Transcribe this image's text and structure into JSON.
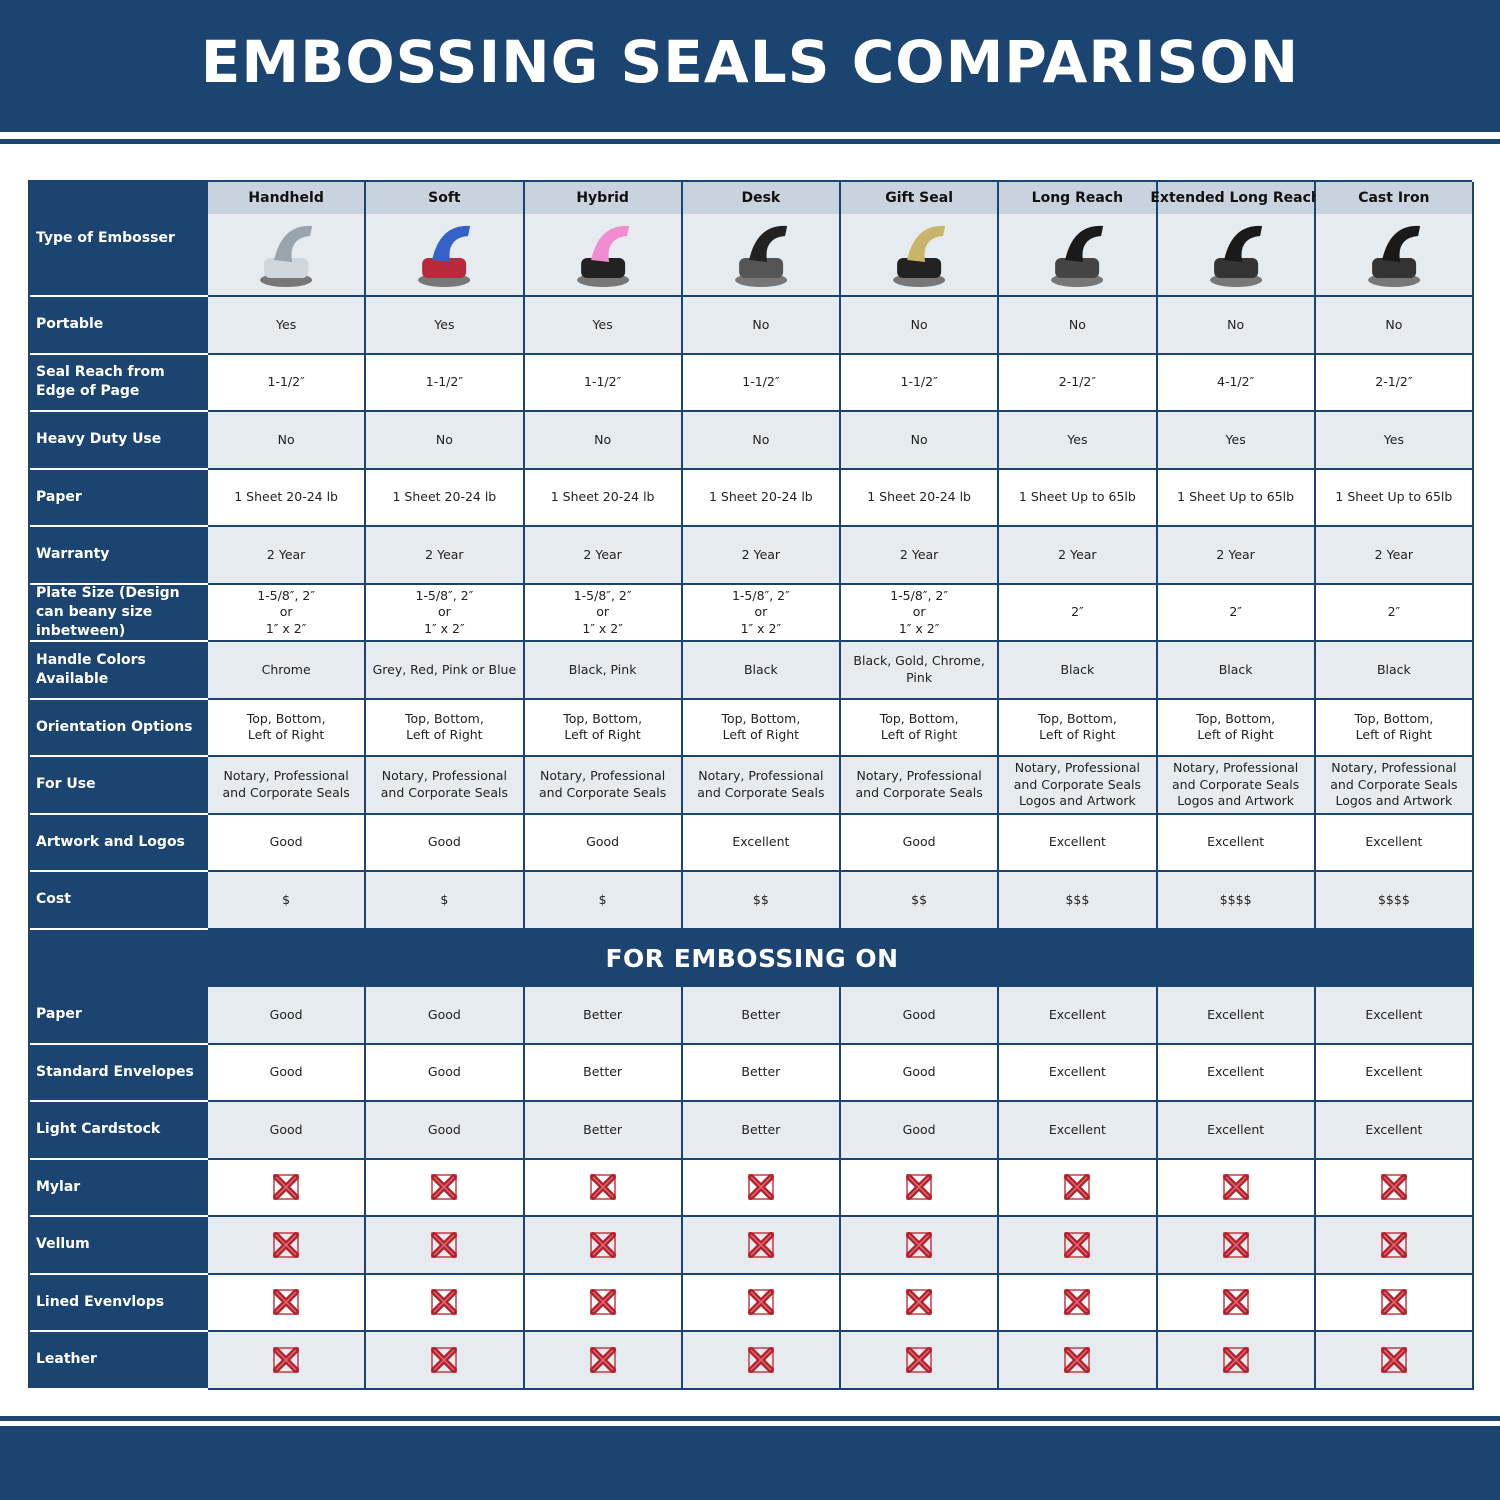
{
  "title": "EMBOSSING SEALS COMPARISON",
  "table": {
    "corner": "Type of Embosser",
    "columns": [
      "Handheld",
      "Soft",
      "Hybrid",
      "Desk",
      "Gift Seal",
      "Long Reach",
      "Extended Long Reach",
      "Cast Iron"
    ],
    "rows": [
      {
        "label": "Portable",
        "cells": [
          "Yes",
          "Yes",
          "Yes",
          "No",
          "No",
          "No",
          "No",
          "No"
        ]
      },
      {
        "label": "Seal Reach from Edge of Page",
        "cells": [
          "1-1/2″",
          "1-1/2″",
          "1-1/2″",
          "1-1/2″",
          "1-1/2″",
          "2-1/2″",
          "4-1/2″",
          "2-1/2″"
        ]
      },
      {
        "label": "Heavy Duty Use",
        "cells": [
          "No",
          "No",
          "No",
          "No",
          "No",
          "Yes",
          "Yes",
          "Yes"
        ]
      },
      {
        "label": "Paper",
        "cells": [
          "1 Sheet 20-24 lb",
          "1 Sheet 20-24 lb",
          "1 Sheet 20-24 lb",
          "1 Sheet 20-24 lb",
          "1 Sheet 20-24 lb",
          "1 Sheet Up to 65lb",
          "1 Sheet Up to 65lb",
          "1 Sheet Up to 65lb"
        ]
      },
      {
        "label": "Warranty",
        "cells": [
          "2 Year",
          "2 Year",
          "2 Year",
          "2 Year",
          "2 Year",
          "2 Year",
          "2 Year",
          "2 Year"
        ]
      },
      {
        "label": "Plate Size (Design can beany size inbetween)",
        "cells": [
          "1-5/8″, 2″\nor\n1″ x 2″",
          "1-5/8″, 2″\nor\n1″ x 2″",
          "1-5/8″, 2″\nor\n1″ x 2″",
          "1-5/8″, 2″\nor\n1″ x 2″",
          "1-5/8″, 2″\nor\n1″ x 2″",
          "2″",
          "2″",
          "2″"
        ]
      },
      {
        "label": "Handle Colors Available",
        "cells": [
          "Chrome",
          "Grey, Red, Pink or Blue",
          "Black, Pink",
          "Black",
          "Black, Gold, Chrome, Pink",
          "Black",
          "Black",
          "Black"
        ]
      },
      {
        "label": "Orientation Options",
        "cells": [
          "Top, Bottom,\nLeft of Right",
          "Top, Bottom,\nLeft of Right",
          "Top, Bottom,\nLeft of Right",
          "Top, Bottom,\nLeft of Right",
          "Top, Bottom,\nLeft of Right",
          "Top, Bottom,\nLeft of Right",
          "Top, Bottom,\nLeft of Right",
          "Top, Bottom,\nLeft of Right"
        ]
      },
      {
        "label": "For Use",
        "cells": [
          "Notary, Professional\nand Corporate Seals",
          "Notary, Professional\nand Corporate Seals",
          "Notary, Professional\nand Corporate Seals",
          "Notary, Professional\nand Corporate Seals",
          "Notary, Professional\nand Corporate Seals",
          "Notary, Professional\nand Corporate Seals\nLogos and Artwork",
          "Notary, Professional\nand Corporate Seals\nLogos and Artwork",
          "Notary, Professional\nand Corporate Seals\nLogos and Artwork"
        ]
      },
      {
        "label": "Artwork and Logos",
        "cells": [
          "Good",
          "Good",
          "Good",
          "Excellent",
          "Good",
          "Excellent",
          "Excellent",
          "Excellent"
        ]
      },
      {
        "label": "Cost",
        "cells": [
          "$",
          "$",
          "$",
          "$$",
          "$$",
          "$$$",
          "$$$$",
          "$$$$"
        ]
      }
    ],
    "section_title": "FOR EMBOSSING ON",
    "section_rows": [
      {
        "label": "Paper",
        "cells": [
          "Good",
          "Good",
          "Better",
          "Better",
          "Good",
          "Excellent",
          "Excellent",
          "Excellent"
        ]
      },
      {
        "label": "Standard Envelopes",
        "cells": [
          "Good",
          "Good",
          "Better",
          "Better",
          "Good",
          "Excellent",
          "Excellent",
          "Excellent"
        ]
      },
      {
        "label": "Light Cardstock",
        "cells": [
          "Good",
          "Good",
          "Better",
          "Better",
          "Good",
          "Excellent",
          "Excellent",
          "Excellent"
        ]
      },
      {
        "label": "Mylar"
      },
      {
        "label": "Vellum"
      },
      {
        "label": "Lined Evenvlops"
      },
      {
        "label": "Leather"
      }
    ]
  }
}
